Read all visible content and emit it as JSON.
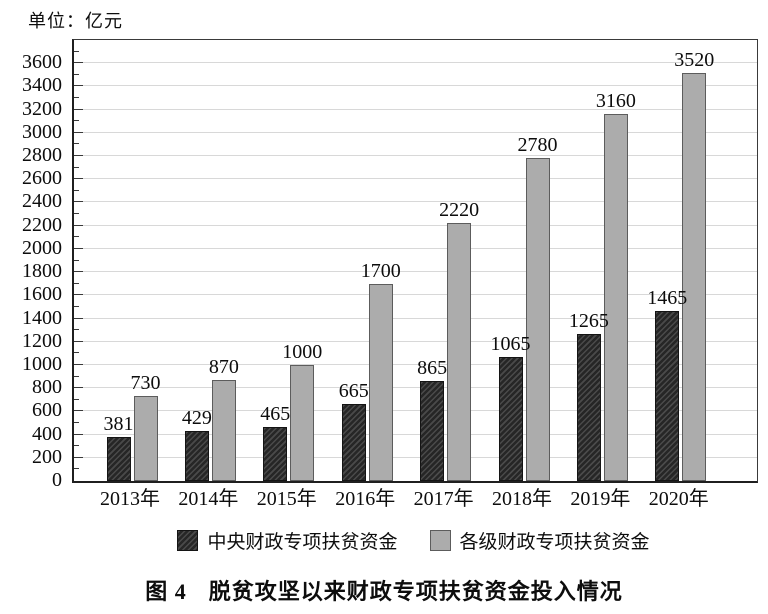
{
  "unit_label": "单位：亿元",
  "caption": {
    "label": "图 4",
    "text": "脱贫攻坚以来财政专项扶贫资金投入情况"
  },
  "chart_data": {
    "type": "bar",
    "title": "图 4 脱贫攻坚以来财政专项扶贫资金投入情况",
    "unit": "亿元",
    "categories": [
      "2013年",
      "2014年",
      "2015年",
      "2016年",
      "2017年",
      "2018年",
      "2019年",
      "2020年"
    ],
    "series": [
      {
        "name": "中央财政专项扶贫资金",
        "style": "dark-hatched",
        "values": [
          381,
          429,
          465,
          665,
          865,
          1065,
          1265,
          1465
        ]
      },
      {
        "name": "各级财政专项扶贫资金",
        "style": "gray-solid",
        "values": [
          730,
          870,
          1000,
          1700,
          2220,
          2780,
          3160,
          3520
        ]
      }
    ],
    "xlabel": "",
    "ylabel": "单位：亿元",
    "ylim": [
      0,
      3800
    ],
    "ytick_step": 200,
    "ytick_label_max": 3600,
    "minor_tick_step": 100,
    "grid": true,
    "data_labels": true,
    "legend_position": "bottom"
  },
  "colors": {
    "bar_dark": "#2e2e2e",
    "bar_dark_stripe": "#4a4a4a",
    "bar_dark_border": "#141414",
    "bar_gray": "#acacac",
    "bar_gray_border": "#5c5c5c",
    "gridline": "#d8d8d8",
    "axis": "#1f1f1f",
    "text": "#0d0d0d",
    "background": "#ffffff"
  }
}
